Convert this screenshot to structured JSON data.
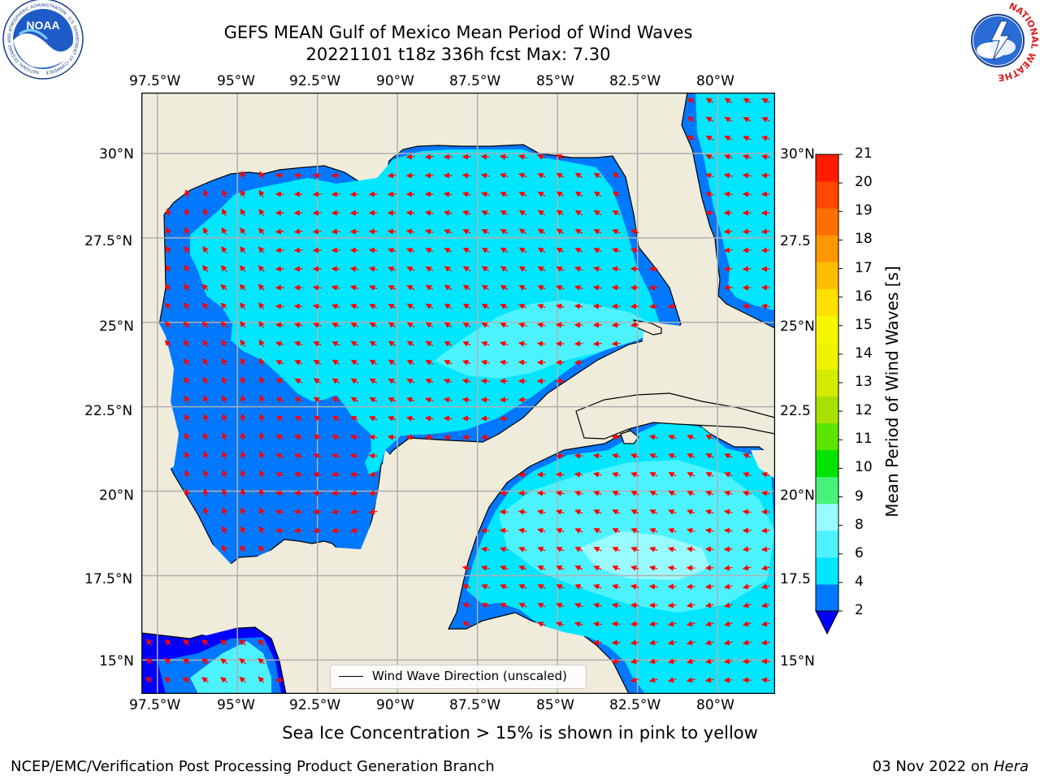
{
  "title": {
    "line1": "GEFS MEAN Gulf of Mexico Mean Period of Wind Waves",
    "line2": "20221101 t18z 336h fcst   Max: 7.30"
  },
  "logos": {
    "left": {
      "name": "noaa-logo",
      "text": "NOAA",
      "ring_text": "NATIONAL OCEANIC AND ATMOSPHERIC ADMINISTRATION · U.S. DEPARTMENT OF COMMERCE"
    },
    "right": {
      "name": "nws-logo",
      "ring_text": "NATIONAL WEATHER SERVICE"
    }
  },
  "map": {
    "lon_labels": [
      "97.5°W",
      "95°W",
      "92.5°W",
      "90°W",
      "87.5°W",
      "85°W",
      "82.5°W",
      "80°W"
    ],
    "lat_labels": [
      "30°N",
      "27.5°N",
      "25°N",
      "22.5°N",
      "20°N",
      "17.5°N",
      "15°N"
    ],
    "right_lat_labels": [
      "30°N",
      "27.5",
      "25°N",
      "22.5",
      "20°N",
      "17.5",
      "15°N"
    ],
    "extent_lon": [
      -98,
      -78.2
    ],
    "extent_lat": [
      14,
      31.8
    ],
    "grid_lons": [
      -97.5,
      -95,
      -92.5,
      -90,
      -87.5,
      -85,
      -82.5,
      -80
    ],
    "grid_lats": [
      30,
      27.5,
      25,
      22.5,
      20,
      17.5,
      15
    ],
    "land_color": "#efecdc",
    "grid_color": "#b0b0b0",
    "arrow_color": "#ff0000"
  },
  "legend": {
    "label": "Wind Wave Direction (unscaled)"
  },
  "colorbar": {
    "label": "Mean Period of Wind Waves [s]",
    "ticks": [
      "21",
      "20",
      "19",
      "18",
      "17",
      "16",
      "15",
      "14",
      "13",
      "12",
      "11",
      "10",
      "9",
      "8",
      "6",
      "4",
      "2"
    ],
    "colors_bottom_to_top": [
      "#0078ff",
      "#00e6ff",
      "#4cf3ff",
      "#99faff",
      "#48f27a",
      "#00e400",
      "#5ae600",
      "#a6e100",
      "#d3eb00",
      "#eef300",
      "#f7f700",
      "#ffe000",
      "#ffbd00",
      "#ff9800",
      "#ff6f00",
      "#ff4700",
      "#ff1d00"
    ],
    "under_color": "#0000ff",
    "range": [
      2,
      21
    ]
  },
  "note": "Sea Ice Concentration > 15% is shown in pink to yellow",
  "footer": {
    "left": "NCEP/EMC/Verification Post Processing Product Generation Branch",
    "right_date": "03 Nov 2022 on ",
    "right_host": "Hera"
  }
}
